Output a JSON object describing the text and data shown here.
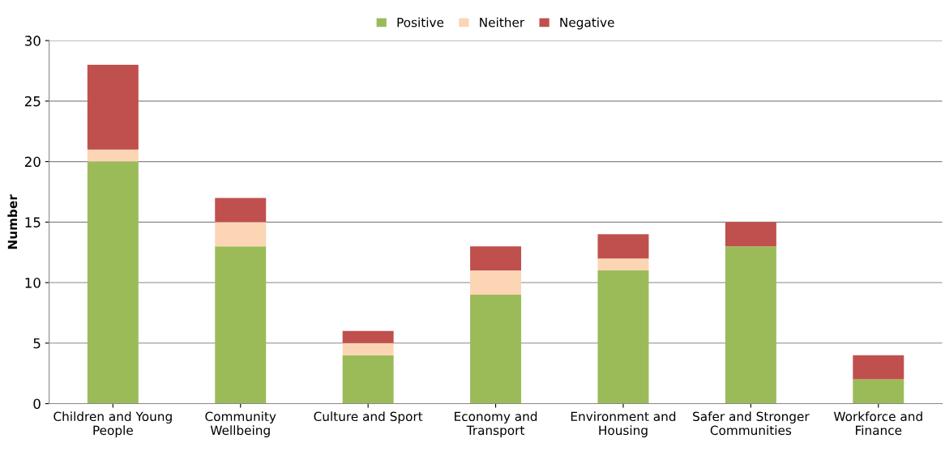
{
  "chart_data": {
    "type": "bar",
    "stacked": true,
    "ylabel": "Number",
    "categories": [
      "Children and Young People",
      "Community Wellbeing",
      "Culture and Sport",
      "Economy and Transport",
      "Environment and Housing",
      "Safer and Stronger Communities",
      "Workforce and Finance"
    ],
    "series": [
      {
        "name": "Positive",
        "color": "#9bbb59",
        "values": [
          20,
          13,
          4,
          9,
          11,
          13,
          2
        ]
      },
      {
        "name": "Neither",
        "color": "#fcd5b5",
        "values": [
          1,
          2,
          1,
          2,
          1,
          0,
          0
        ]
      },
      {
        "name": "Negative",
        "color": "#c0504d",
        "values": [
          7,
          2,
          1,
          2,
          2,
          2,
          2
        ]
      }
    ],
    "ylim": [
      0,
      30
    ],
    "yticks": [
      0,
      5,
      10,
      15,
      20,
      25,
      30
    ],
    "grid": "y",
    "legend": "top"
  }
}
